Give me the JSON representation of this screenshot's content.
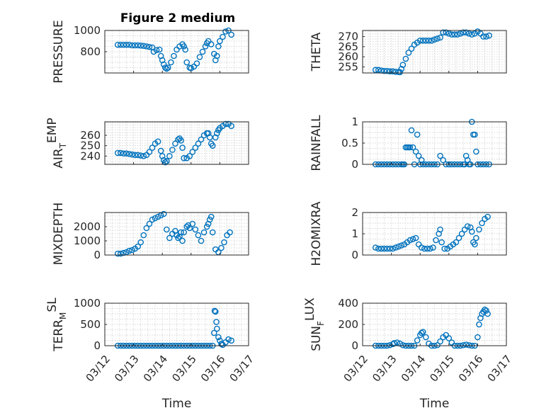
{
  "figure_title": "Figure 2 medium",
  "colors": {
    "marker": "#0072BD",
    "axis": "#262626",
    "grid": "#c8c8c8"
  },
  "chart_data": [
    {
      "type": "scatter",
      "ylabel": "PRESSURE",
      "xlabel": "",
      "xlim": [
        "03/12",
        "03/17"
      ],
      "ylim": [
        600,
        1000
      ],
      "yticks": [
        800,
        1000
      ],
      "xticks": [],
      "grid": true,
      "x": [
        12.45,
        12.55,
        12.65,
        12.75,
        12.85,
        12.95,
        13.05,
        13.15,
        13.25,
        13.35,
        13.45,
        13.55,
        13.65,
        13.7,
        13.8,
        13.9,
        13.95,
        14.0,
        14.05,
        14.1,
        14.15,
        14.2,
        14.3,
        14.4,
        14.5,
        14.6,
        14.7,
        14.75,
        14.8,
        14.85,
        14.95,
        15.0,
        15.1,
        15.2,
        15.3,
        15.4,
        15.5,
        15.55,
        15.6,
        15.7,
        15.8,
        15.85,
        15.9,
        15.95,
        16.0,
        16.1,
        16.2,
        16.3,
        16.4
      ],
      "y": [
        865,
        865,
        865,
        865,
        865,
        860,
        860,
        860,
        858,
        855,
        850,
        845,
        840,
        800,
        815,
        820,
        760,
        720,
        680,
        650,
        640,
        650,
        700,
        760,
        820,
        850,
        870,
        850,
        820,
        700,
        650,
        645,
        660,
        690,
        750,
        800,
        850,
        880,
        900,
        870,
        780,
        720,
        760,
        850,
        900,
        940,
        990,
        1000,
        960
      ]
    },
    {
      "type": "scatter",
      "ylabel": "THETA",
      "xlabel": "",
      "xlim": [
        "03/12",
        "03/17"
      ],
      "ylim": [
        252,
        273
      ],
      "yticks": [
        255,
        260,
        265,
        270
      ],
      "xticks": [],
      "grid": true,
      "x": [
        12.45,
        12.55,
        12.65,
        12.75,
        12.85,
        12.95,
        13.05,
        13.15,
        13.25,
        13.3,
        13.35,
        13.4,
        13.5,
        13.6,
        13.7,
        13.8,
        13.9,
        14.0,
        14.1,
        14.2,
        14.3,
        14.4,
        14.5,
        14.6,
        14.7,
        14.8,
        14.9,
        15.0,
        15.1,
        15.2,
        15.3,
        15.4,
        15.5,
        15.6,
        15.7,
        15.8,
        15.9,
        16.0,
        16.1,
        16.2,
        16.3,
        16.4
      ],
      "y": [
        253.5,
        253.5,
        253.2,
        253.0,
        253.0,
        252.8,
        252.8,
        252.6,
        252.5,
        252.4,
        254,
        256,
        259,
        262,
        264,
        266,
        267,
        268,
        268,
        268,
        268,
        268,
        268.5,
        269,
        269.5,
        272,
        272,
        271.5,
        271,
        271,
        271,
        271.5,
        272,
        272,
        271.5,
        271,
        271.5,
        272.5,
        271.5,
        270,
        270,
        270.5
      ]
    },
    {
      "type": "scatter",
      "ylabel": "AIR_TEMP",
      "xlabel": "",
      "xlim": [
        "03/12",
        "03/17"
      ],
      "ylim": [
        232,
        273
      ],
      "yticks": [
        240,
        250,
        260
      ],
      "xticks": [],
      "grid": true,
      "x": [
        12.45,
        12.55,
        12.65,
        12.75,
        12.85,
        12.95,
        13.05,
        13.15,
        13.25,
        13.35,
        13.45,
        13.55,
        13.65,
        13.75,
        13.85,
        13.95,
        14.0,
        14.05,
        14.1,
        14.15,
        14.25,
        14.35,
        14.45,
        14.55,
        14.6,
        14.65,
        14.7,
        14.75,
        14.85,
        14.95,
        15.05,
        15.15,
        15.25,
        15.35,
        15.45,
        15.55,
        15.6,
        15.65,
        15.7,
        15.75,
        15.85,
        15.9,
        15.95,
        16.0,
        16.1,
        16.2,
        16.3,
        16.4
      ],
      "y": [
        243,
        243,
        242.5,
        242.5,
        242,
        241.5,
        241,
        241,
        240.5,
        240,
        241,
        244,
        248,
        252,
        254,
        245,
        240,
        236,
        234,
        235,
        240,
        246,
        252,
        256,
        257,
        255,
        248,
        238,
        238,
        240,
        244,
        248,
        252,
        256,
        260,
        262,
        262,
        258,
        252,
        250,
        258,
        262,
        265,
        267,
        269,
        271,
        271,
        269
      ]
    },
    {
      "type": "scatter",
      "ylabel": "RAINFALL",
      "xlabel": "",
      "xlim": [
        "03/12",
        "03/17"
      ],
      "ylim": [
        0,
        1
      ],
      "yticks": [
        0,
        0.5,
        1
      ],
      "xticks": [],
      "grid": true,
      "x": [
        12.45,
        12.55,
        12.65,
        12.75,
        12.85,
        12.95,
        13.05,
        13.15,
        13.25,
        13.35,
        13.4,
        13.45,
        13.5,
        13.55,
        13.6,
        13.65,
        13.7,
        13.75,
        13.8,
        13.85,
        13.9,
        13.95,
        14.0,
        14.05,
        14.1,
        14.2,
        14.3,
        14.4,
        14.5,
        14.6,
        14.7,
        14.8,
        14.9,
        15.0,
        15.1,
        15.2,
        15.3,
        15.4,
        15.5,
        15.55,
        15.6,
        15.65,
        15.7,
        15.75,
        15.8,
        15.85,
        15.9,
        15.95,
        16.0,
        16.1,
        16.2,
        16.3,
        16.4
      ],
      "y": [
        0,
        0,
        0,
        0,
        0,
        0,
        0,
        0,
        0,
        0,
        0,
        0,
        0.4,
        0.4,
        0.4,
        0.4,
        0.8,
        0.4,
        0,
        0.3,
        0.7,
        0.2,
        0,
        0.1,
        0,
        0,
        0,
        0,
        0,
        0,
        0.2,
        0.1,
        0,
        0,
        0,
        0,
        0,
        0,
        0,
        0,
        0.2,
        0.1,
        0,
        0,
        1.0,
        0.7,
        0.7,
        0.3,
        0,
        0,
        0,
        0,
        0
      ]
    },
    {
      "type": "scatter",
      "ylabel": "MIXDEPTH",
      "xlabel": "",
      "xlim": [
        "03/12",
        "03/17"
      ],
      "ylim": [
        0,
        3000
      ],
      "yticks": [
        0,
        1000,
        2000
      ],
      "xticks": [],
      "grid": true,
      "x": [
        12.45,
        12.55,
        12.65,
        12.75,
        12.85,
        12.95,
        13.05,
        13.15,
        13.25,
        13.35,
        13.45,
        13.55,
        13.65,
        13.75,
        13.85,
        13.95,
        14.05,
        14.15,
        14.25,
        14.35,
        14.45,
        14.5,
        14.55,
        14.6,
        14.65,
        14.7,
        14.75,
        14.85,
        14.9,
        14.95,
        15.05,
        15.15,
        15.25,
        15.35,
        15.45,
        15.55,
        15.6,
        15.65,
        15.7,
        15.75,
        15.85,
        15.95,
        16.05,
        16.15,
        16.25,
        16.35
      ],
      "y": [
        100,
        100,
        150,
        200,
        300,
        350,
        450,
        600,
        900,
        1400,
        1900,
        2200,
        2500,
        2600,
        2700,
        2800,
        2900,
        1800,
        1200,
        1500,
        1700,
        1400,
        1200,
        1300,
        1600,
        1000,
        1600,
        2000,
        2100,
        1900,
        2200,
        1800,
        1400,
        1000,
        1600,
        2000,
        2200,
        2500,
        2700,
        1600,
        400,
        200,
        500,
        900,
        1400,
        1600
      ]
    },
    {
      "type": "scatter",
      "ylabel": "H2OMIXRA",
      "xlabel": "",
      "xlim": [
        "03/12",
        "03/17"
      ],
      "ylim": [
        0,
        2
      ],
      "yticks": [
        0,
        1,
        2
      ],
      "xticks": [],
      "grid": true,
      "x": [
        12.45,
        12.55,
        12.65,
        12.75,
        12.85,
        12.95,
        13.05,
        13.15,
        13.25,
        13.35,
        13.45,
        13.55,
        13.65,
        13.75,
        13.85,
        13.95,
        14.05,
        14.15,
        14.25,
        14.35,
        14.45,
        14.55,
        14.65,
        14.7,
        14.75,
        14.85,
        14.95,
        15.05,
        15.15,
        15.25,
        15.35,
        15.45,
        15.55,
        15.65,
        15.75,
        15.8,
        15.85,
        15.9,
        15.95,
        16.05,
        16.15,
        16.25,
        16.35
      ],
      "y": [
        0.35,
        0.3,
        0.3,
        0.3,
        0.3,
        0.3,
        0.3,
        0.35,
        0.4,
        0.45,
        0.5,
        0.6,
        0.7,
        0.75,
        0.8,
        0.5,
        0.35,
        0.3,
        0.3,
        0.3,
        0.35,
        0.7,
        1.0,
        1.2,
        0.6,
        0.3,
        0.3,
        0.4,
        0.5,
        0.6,
        0.8,
        1.0,
        1.2,
        1.35,
        1.3,
        1.1,
        0.6,
        0.5,
        0.8,
        1.2,
        1.5,
        1.7,
        1.8
      ]
    },
    {
      "type": "scatter",
      "ylabel": "TERR_MSL",
      "xlabel": "Time",
      "xlim": [
        "03/12",
        "03/17"
      ],
      "ylim": [
        0,
        1000
      ],
      "yticks": [
        0,
        500,
        1000
      ],
      "grid": true,
      "xticks": [
        "03/12",
        "03/13",
        "03/14",
        "03/15",
        "03/16",
        "03/17"
      ],
      "x": [
        12.45,
        12.55,
        12.65,
        12.75,
        12.85,
        12.95,
        13.05,
        13.15,
        13.25,
        13.35,
        13.45,
        13.55,
        13.65,
        13.75,
        13.85,
        13.95,
        14.05,
        14.15,
        14.25,
        14.35,
        14.45,
        14.55,
        14.65,
        14.75,
        14.85,
        14.95,
        15.05,
        15.15,
        15.25,
        15.35,
        15.45,
        15.55,
        15.65,
        15.75,
        15.8,
        15.82,
        15.85,
        15.88,
        15.9,
        15.95,
        16.0,
        16.05,
        16.1,
        16.2,
        16.3,
        16.4
      ],
      "y": [
        0,
        0,
        0,
        0,
        0,
        0,
        0,
        0,
        0,
        0,
        0,
        0,
        0,
        0,
        0,
        0,
        0,
        0,
        0,
        0,
        0,
        0,
        0,
        0,
        0,
        0,
        0,
        0,
        0,
        0,
        0,
        0,
        0,
        0,
        300,
        820,
        800,
        560,
        400,
        200,
        120,
        40,
        20,
        80,
        150,
        120
      ]
    },
    {
      "type": "scatter",
      "ylabel": "SUN_FLUX",
      "xlabel": "Time",
      "xlim": [
        "03/12",
        "03/17"
      ],
      "ylim": [
        0,
        400
      ],
      "yticks": [
        0,
        200,
        400
      ],
      "grid": true,
      "xticks": [
        "03/12",
        "03/13",
        "03/14",
        "03/15",
        "03/16",
        "03/17"
      ],
      "x": [
        12.45,
        12.55,
        12.65,
        12.75,
        12.85,
        12.95,
        13.05,
        13.1,
        13.2,
        13.3,
        13.4,
        13.5,
        13.6,
        13.7,
        13.8,
        13.9,
        14.0,
        14.05,
        14.1,
        14.2,
        14.3,
        14.4,
        14.5,
        14.6,
        14.7,
        14.8,
        14.9,
        15.0,
        15.1,
        15.2,
        15.3,
        15.4,
        15.5,
        15.6,
        15.7,
        15.8,
        15.9,
        16.0,
        16.05,
        16.1,
        16.15,
        16.2,
        16.25,
        16.3,
        16.35
      ],
      "y": [
        0,
        0,
        0,
        0,
        0,
        5,
        15,
        25,
        30,
        20,
        5,
        0,
        0,
        0,
        0,
        50,
        100,
        120,
        130,
        80,
        20,
        0,
        0,
        5,
        40,
        80,
        100,
        70,
        30,
        0,
        0,
        0,
        5,
        10,
        5,
        0,
        0,
        80,
        200,
        260,
        300,
        320,
        340,
        330,
        300
      ]
    }
  ]
}
